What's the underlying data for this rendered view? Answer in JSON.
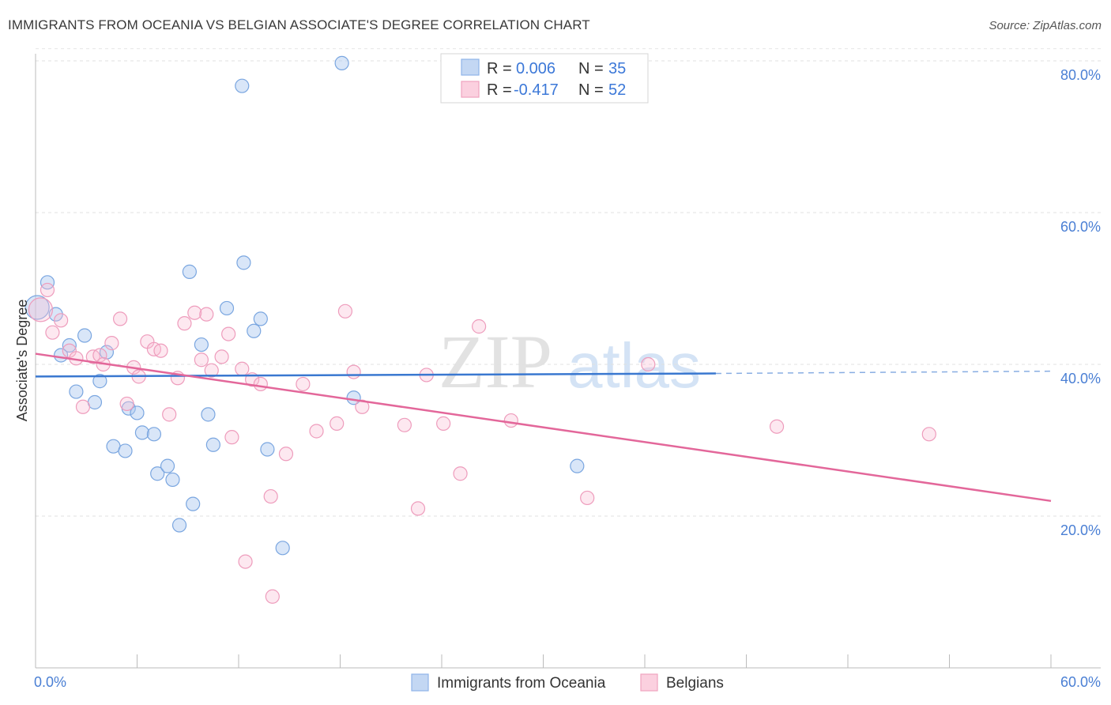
{
  "header": {
    "title": "IMMIGRANTS FROM OCEANIA VS BELGIAN ASSOCIATE'S DEGREE CORRELATION CHART",
    "source": "Source: ZipAtlas.com"
  },
  "watermark": {
    "part1": "ZIP",
    "part2": "atlas"
  },
  "colors": {
    "blue": "#8fb4e8",
    "blue_line": "#3a78d0",
    "pink": "#f1a3bf",
    "pink_line": "#e3679a",
    "label_blue": "#4a7fd4"
  },
  "legend": {
    "rows": [
      {
        "r_label": "R =",
        "r_value": "0.006",
        "n_label": "N =",
        "n_value": "35"
      },
      {
        "r_label": "R =",
        "r_value": "-0.417",
        "n_label": "N =",
        "n_value": "52"
      }
    ]
  },
  "bottom_legend": {
    "items": [
      {
        "label": "Immigrants from Oceania"
      },
      {
        "label": "Belgians"
      }
    ]
  },
  "chart_data": {
    "type": "scatter",
    "title": "IMMIGRANTS FROM OCEANIA VS BELGIAN ASSOCIATE'S DEGREE CORRELATION CHART",
    "xlabel": "",
    "ylabel": "Associate's Degree",
    "xlim": [
      0,
      60
    ],
    "ylim": [
      0,
      82
    ],
    "x_tick_labels": [
      "0.0%",
      "60.0%"
    ],
    "y_ticks": [
      20,
      40,
      60,
      80
    ],
    "y_tick_labels": [
      "20.0%",
      "40.0%",
      "60.0%",
      "80.0%"
    ],
    "grid": true,
    "series": [
      {
        "name": "Immigrants from Oceania",
        "color": "#8fb4e8",
        "points": [
          [
            0.1,
            47.5
          ],
          [
            0.7,
            50.8
          ],
          [
            1.2,
            46.6
          ],
          [
            1.5,
            41.2
          ],
          [
            2.0,
            42.5
          ],
          [
            2.4,
            36.4
          ],
          [
            2.9,
            43.8
          ],
          [
            3.5,
            35.0
          ],
          [
            3.8,
            37.8
          ],
          [
            4.2,
            41.6
          ],
          [
            4.6,
            29.2
          ],
          [
            5.3,
            28.6
          ],
          [
            5.5,
            34.2
          ],
          [
            6.0,
            33.6
          ],
          [
            6.3,
            31.0
          ],
          [
            7.0,
            30.8
          ],
          [
            7.2,
            25.6
          ],
          [
            7.8,
            26.6
          ],
          [
            8.1,
            24.8
          ],
          [
            8.5,
            18.8
          ],
          [
            9.1,
            52.2
          ],
          [
            9.3,
            21.6
          ],
          [
            9.8,
            42.6
          ],
          [
            10.2,
            33.4
          ],
          [
            10.5,
            29.4
          ],
          [
            11.3,
            47.4
          ],
          [
            12.2,
            76.7
          ],
          [
            12.3,
            53.4
          ],
          [
            12.9,
            44.4
          ],
          [
            13.3,
            46.0
          ],
          [
            13.7,
            28.8
          ],
          [
            14.6,
            15.8
          ],
          [
            18.1,
            79.7
          ],
          [
            18.8,
            35.6
          ],
          [
            32.0,
            26.6
          ]
        ]
      },
      {
        "name": "Belgians",
        "color": "#f1a3bf",
        "points": [
          [
            0.3,
            47.2
          ],
          [
            0.7,
            49.8
          ],
          [
            1.0,
            44.2
          ],
          [
            1.5,
            45.8
          ],
          [
            2.0,
            41.8
          ],
          [
            2.4,
            40.8
          ],
          [
            2.8,
            34.4
          ],
          [
            3.4,
            41.0
          ],
          [
            3.8,
            41.2
          ],
          [
            4.0,
            40.0
          ],
          [
            4.5,
            42.8
          ],
          [
            5.0,
            46.0
          ],
          [
            5.4,
            34.8
          ],
          [
            5.8,
            39.6
          ],
          [
            6.1,
            38.4
          ],
          [
            6.6,
            43.0
          ],
          [
            7.0,
            42.0
          ],
          [
            7.4,
            41.8
          ],
          [
            7.9,
            33.4
          ],
          [
            8.4,
            38.2
          ],
          [
            8.8,
            45.4
          ],
          [
            9.4,
            46.8
          ],
          [
            9.8,
            40.6
          ],
          [
            10.1,
            46.6
          ],
          [
            10.4,
            39.2
          ],
          [
            11.0,
            41.0
          ],
          [
            11.4,
            44.0
          ],
          [
            11.6,
            30.4
          ],
          [
            12.2,
            39.4
          ],
          [
            12.4,
            14.0
          ],
          [
            12.8,
            38.0
          ],
          [
            13.3,
            37.4
          ],
          [
            13.9,
            22.6
          ],
          [
            14.8,
            28.2
          ],
          [
            15.8,
            37.4
          ],
          [
            16.6,
            31.2
          ],
          [
            17.8,
            32.2
          ],
          [
            18.3,
            47.0
          ],
          [
            18.8,
            39.0
          ],
          [
            19.3,
            34.4
          ],
          [
            21.8,
            32.0
          ],
          [
            22.6,
            21.0
          ],
          [
            23.1,
            38.6
          ],
          [
            24.1,
            32.2
          ],
          [
            25.1,
            25.6
          ],
          [
            26.2,
            45.0
          ],
          [
            28.1,
            32.6
          ],
          [
            32.6,
            22.4
          ],
          [
            36.2,
            40.0
          ],
          [
            43.8,
            31.8
          ],
          [
            52.8,
            30.8
          ],
          [
            14.0,
            9.4
          ]
        ]
      }
    ],
    "trend_lines": [
      {
        "series": "Immigrants from Oceania",
        "x_start": 0,
        "y_start": 38.4,
        "x_end": 40.2,
        "y_end": 38.8,
        "dashed_to_x": 60,
        "dashed_to_y": 39.1
      },
      {
        "series": "Belgians",
        "x_start": 0,
        "y_start": 41.4,
        "x_end": 60,
        "y_end": 22.0
      }
    ]
  }
}
